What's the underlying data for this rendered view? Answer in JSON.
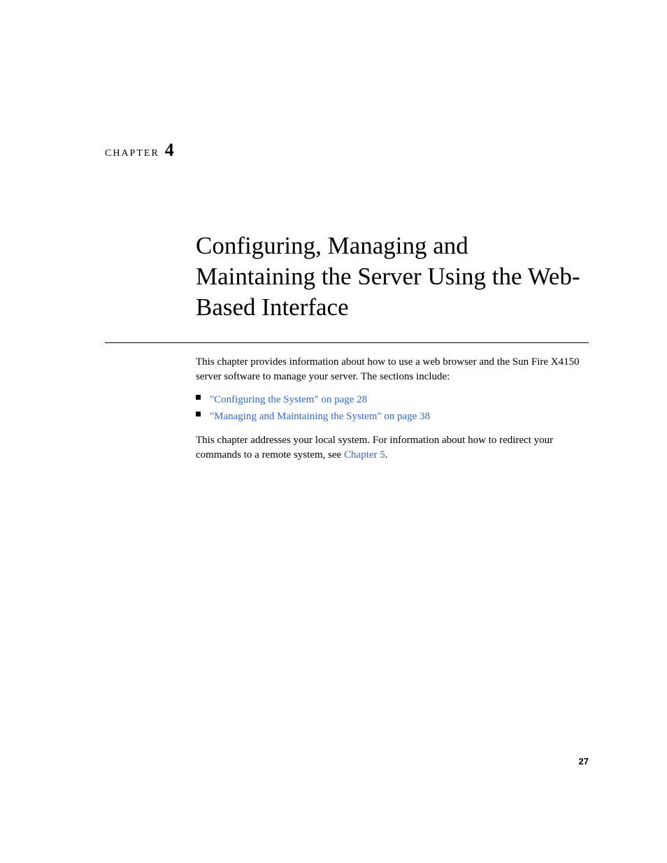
{
  "chapter": {
    "label": "CHAPTER",
    "number": "4",
    "title": "Configuring, Managing and Maintaining the Server Using the Web-Based Interface"
  },
  "content": {
    "intro_para": "This chapter provides information about how to use a web browser and the Sun Fire X4150 server software to manage your server. The sections include:",
    "bullets": [
      "\"Configuring the System\" on page 28",
      "\"Managing and Maintaining the System\" on page 38"
    ],
    "closing_para_pre": "This chapter addresses your local system. For information about how to redirect your commands to a remote system, see ",
    "closing_link": "Chapter 5",
    "closing_para_post": "."
  },
  "page_number": "27",
  "colors": {
    "link": "#3366cc",
    "text": "#000000",
    "bg": "#ffffff"
  },
  "typography": {
    "body_size": 15,
    "title_size": 35,
    "chapter_label_size": 14,
    "chapter_number_size": 26,
    "page_number_size": 13
  }
}
